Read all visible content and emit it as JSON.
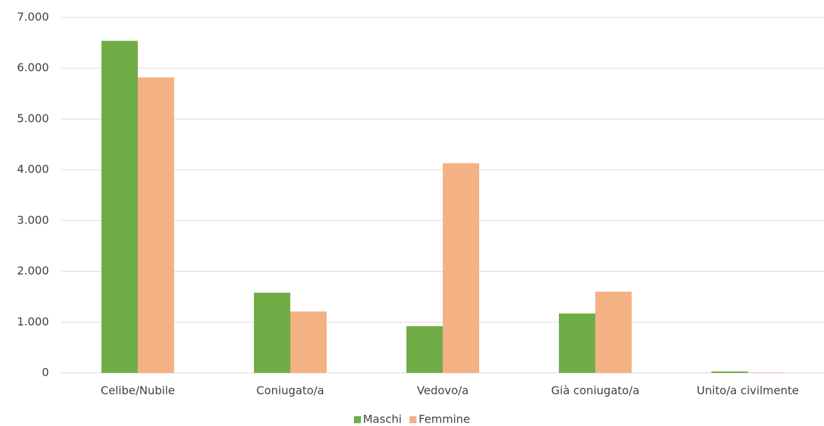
{
  "chart_data": {
    "type": "bar",
    "categories": [
      "Celibe/Nubile",
      "Coniugato/a",
      "Vedovo/a",
      "Già coniugato/a",
      "Unito/a civilmente"
    ],
    "series": [
      {
        "name": "Maschi",
        "color": "#70ad47",
        "values": [
          6540,
          1580,
          920,
          1170,
          30
        ]
      },
      {
        "name": "Femmine",
        "color": "#f4b183",
        "values": [
          5820,
          1210,
          4130,
          1600,
          10
        ]
      }
    ],
    "ylim": [
      0,
      7000
    ],
    "yticks": [
      0,
      {
        "value": 1000,
        "label": "1.000"
      },
      {
        "value": 2000,
        "label": "2.000"
      },
      {
        "value": 3000,
        "label": "3.000"
      },
      {
        "value": 4000,
        "label": "4.000"
      },
      {
        "value": 5000,
        "label": "5.000"
      },
      {
        "value": 6000,
        "label": "6.000"
      },
      {
        "value": 7000,
        "label": "7.000"
      }
    ],
    "grid": true,
    "legend": "bottom"
  }
}
